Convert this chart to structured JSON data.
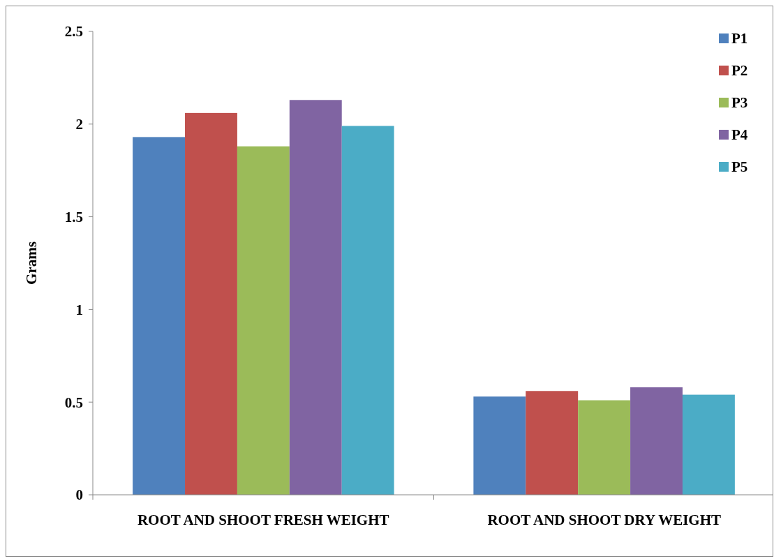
{
  "chart_data": {
    "type": "bar",
    "ylabel": "Grams",
    "categories": [
      "ROOT AND SHOOT FRESH WEIGHT",
      "ROOT AND SHOOT DRY WEIGHT"
    ],
    "series": [
      {
        "name": "P1",
        "color": "#4f81bd",
        "values": [
          1.93,
          0.53
        ]
      },
      {
        "name": "P2",
        "color": "#c0504d",
        "values": [
          2.06,
          0.56
        ]
      },
      {
        "name": "P3",
        "color": "#9bbb59",
        "values": [
          1.88,
          0.51
        ]
      },
      {
        "name": "P4",
        "color": "#8064a2",
        "values": [
          2.13,
          0.58
        ]
      },
      {
        "name": "P5",
        "color": "#4bacc6",
        "values": [
          1.99,
          0.54
        ]
      }
    ],
    "ylim": [
      0,
      2.5
    ],
    "yticks": [
      0,
      0.5,
      1,
      1.5,
      2,
      2.5
    ],
    "grid": false,
    "legend": "top right"
  }
}
